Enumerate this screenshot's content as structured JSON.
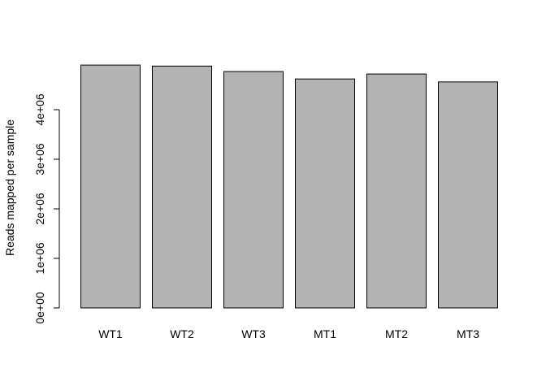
{
  "chart_data": {
    "type": "bar",
    "title": "",
    "xlabel": "",
    "ylabel": "Reads mapped per sample",
    "categories": [
      "WT1",
      "WT2",
      "WT3",
      "MT1",
      "MT2",
      "MT3"
    ],
    "values": [
      4900000,
      4880000,
      4770000,
      4620000,
      4720000,
      4560000
    ],
    "ylim": [
      0,
      4900000
    ],
    "y_ticks": [
      0,
      1000000,
      2000000,
      3000000,
      4000000
    ],
    "y_tick_labels": [
      "0e+00",
      "1e+06",
      "2e+06",
      "3e+06",
      "4e+06"
    ],
    "bar_color": "#b3b3b3",
    "bar_border_color": "#000000",
    "grid": false,
    "legend": "none"
  }
}
